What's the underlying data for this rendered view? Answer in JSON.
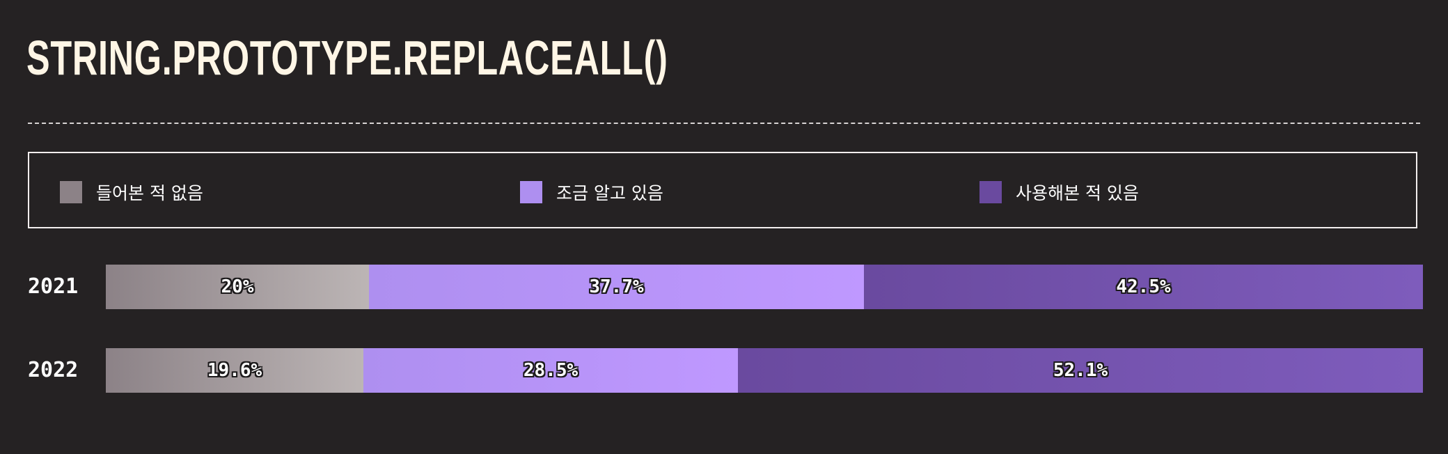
{
  "chart_data": {
    "type": "bar",
    "orientation": "horizontal",
    "stacked": true,
    "title": "STRING.PROTOTYPE.REPLACEALL()",
    "categories": [
      "2021",
      "2022"
    ],
    "series": [
      {
        "name": "들어본 적 없음",
        "values": [
          20,
          19.6
        ],
        "labels": [
          "20%",
          "19.6%"
        ],
        "color_from": "#8c8287",
        "color_to": "#bcb5b5"
      },
      {
        "name": "조금 알고 있음",
        "values": [
          37.7,
          28.5
        ],
        "labels": [
          "37.7%",
          "28.5%"
        ],
        "color_from": "#ae8ff0",
        "color_to": "#bf98ff"
      },
      {
        "name": "사용해본 적 있음",
        "values": [
          42.5,
          52.1
        ],
        "labels": [
          "42.5%",
          "52.1%"
        ],
        "color_from": "#6a4a9f",
        "color_to": "#7e5cbc"
      }
    ],
    "xlim": [
      0,
      100
    ],
    "legend_position": "top",
    "grid": false
  }
}
